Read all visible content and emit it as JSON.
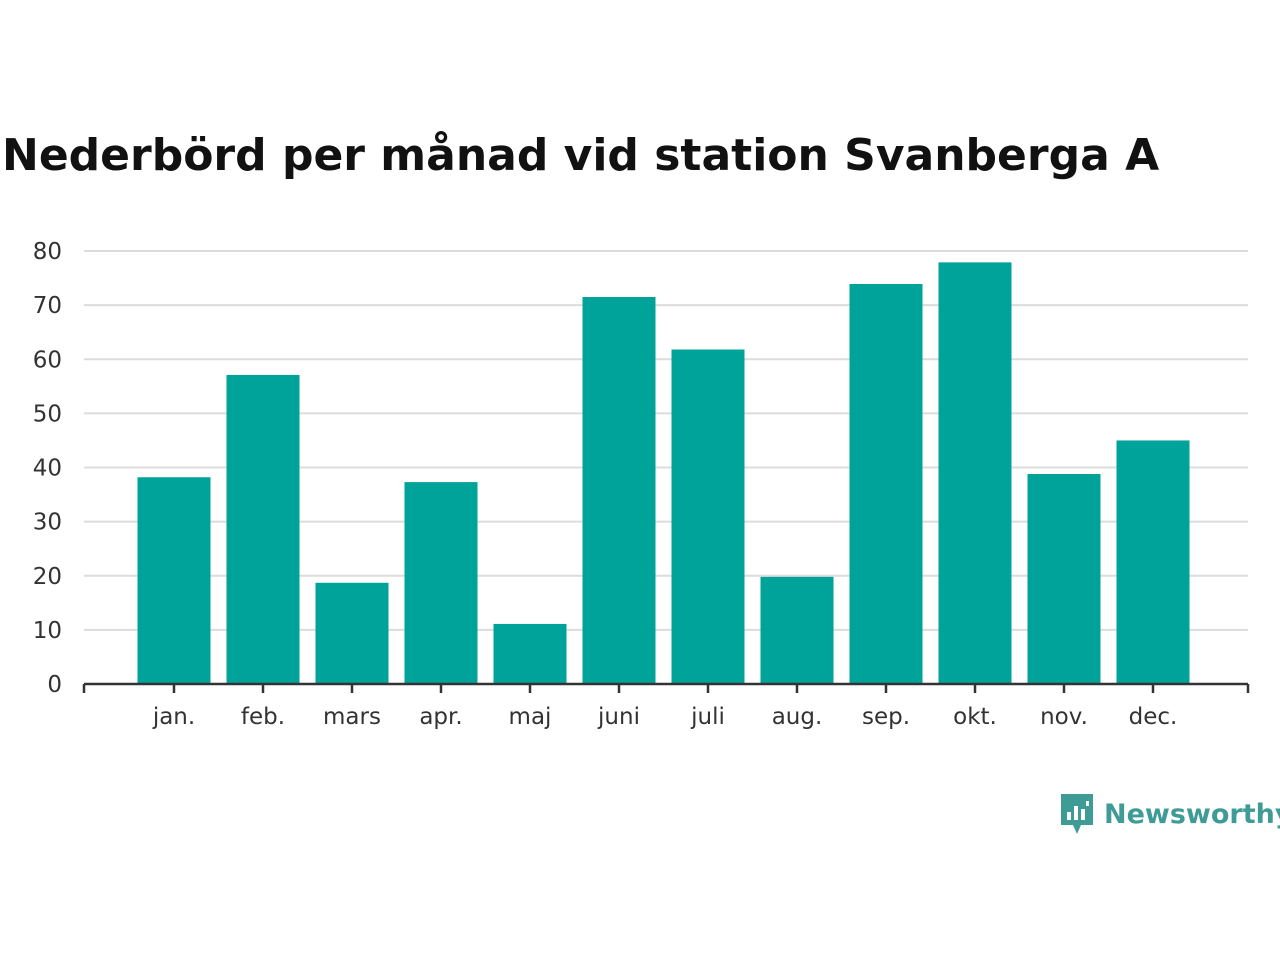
{
  "chart_data": {
    "type": "bar",
    "title": "Nederbörd per månad vid station Svanberga A",
    "categories": [
      "jan.",
      "feb.",
      "mars",
      "apr.",
      "maj",
      "juni",
      "juli",
      "aug.",
      "sep.",
      "okt.",
      "nov.",
      "dec."
    ],
    "values": [
      38.2,
      57.1,
      18.7,
      37.3,
      11.1,
      71.5,
      61.8,
      19.8,
      73.9,
      77.9,
      38.8,
      45.0
    ],
    "xlabel": "",
    "ylabel": "",
    "ylim": [
      0,
      80
    ],
    "yticks": [
      "0",
      "10",
      "20",
      "30",
      "40",
      "50",
      "60",
      "70",
      "80"
    ],
    "grid": true,
    "bar_color": "#00a39a"
  },
  "brand": {
    "name": "Newsworthy",
    "icon": "newsworthy-logo-icon",
    "color": "#3f9b95"
  }
}
